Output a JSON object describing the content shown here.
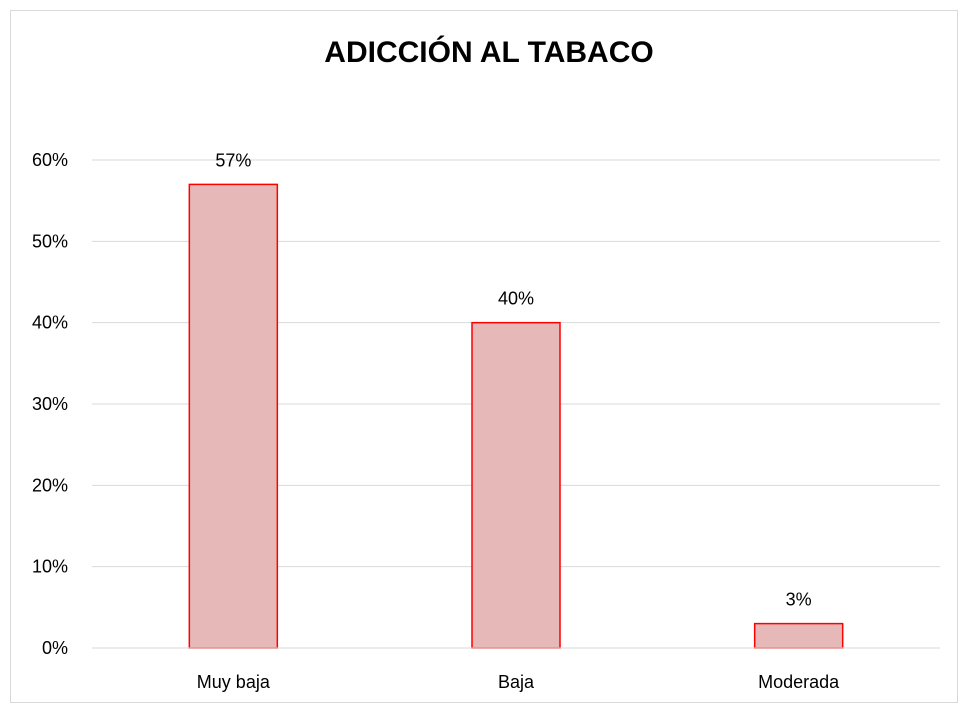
{
  "chart_data": {
    "type": "bar",
    "title": "ADICCIÓN AL TABACO",
    "categories": [
      "Muy baja",
      "Baja",
      "Moderada"
    ],
    "values": [
      57,
      40,
      3
    ],
    "data_labels": [
      "57%",
      "40%",
      "3%"
    ],
    "ylim": [
      0,
      60
    ],
    "yticks": [
      0,
      10,
      20,
      30,
      40,
      50,
      60
    ],
    "ytick_labels": [
      "0%",
      "10%",
      "20%",
      "30%",
      "40%",
      "50%",
      "60%"
    ],
    "grid": true,
    "legend": "none",
    "bar_fill_color": "#e6b8b7",
    "bar_border_color": "#ff0000",
    "gridline_color": "#d9d9d9"
  }
}
